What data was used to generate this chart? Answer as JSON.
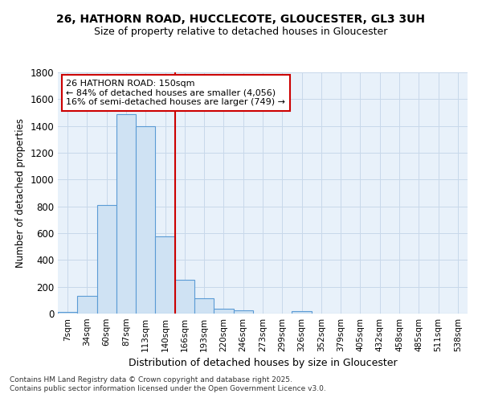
{
  "title1": "26, HATHORN ROAD, HUCCLECOTE, GLOUCESTER, GL3 3UH",
  "title2": "Size of property relative to detached houses in Gloucester",
  "xlabel": "Distribution of detached houses by size in Gloucester",
  "ylabel": "Number of detached properties",
  "footer1": "Contains HM Land Registry data © Crown copyright and database right 2025.",
  "footer2": "Contains public sector information licensed under the Open Government Licence v3.0.",
  "bin_labels": [
    "7sqm",
    "34sqm",
    "60sqm",
    "87sqm",
    "113sqm",
    "140sqm",
    "166sqm",
    "193sqm",
    "220sqm",
    "246sqm",
    "273sqm",
    "299sqm",
    "326sqm",
    "352sqm",
    "379sqm",
    "405sqm",
    "432sqm",
    "458sqm",
    "485sqm",
    "511sqm",
    "538sqm"
  ],
  "bin_values": [
    10,
    130,
    810,
    1490,
    1400,
    575,
    250,
    115,
    35,
    25,
    0,
    0,
    20,
    0,
    0,
    0,
    0,
    0,
    0,
    0,
    0
  ],
  "bar_color": "#cfe2f3",
  "bar_edge_color": "#5b9bd5",
  "grid_color": "#c8d8ea",
  "bg_color": "#e8f1fa",
  "annotation_box_color": "#cc0000",
  "vline_color": "#cc0000",
  "vline_x": 5.5,
  "annotation_title": "26 HATHORN ROAD: 150sqm",
  "annotation_line1": "← 84% of detached houses are smaller (4,056)",
  "annotation_line2": "16% of semi-detached houses are larger (749) →",
  "ylim": [
    0,
    1800
  ],
  "yticks": [
    0,
    200,
    400,
    600,
    800,
    1000,
    1200,
    1400,
    1600,
    1800
  ],
  "title1_fontsize": 10,
  "title2_fontsize": 9
}
